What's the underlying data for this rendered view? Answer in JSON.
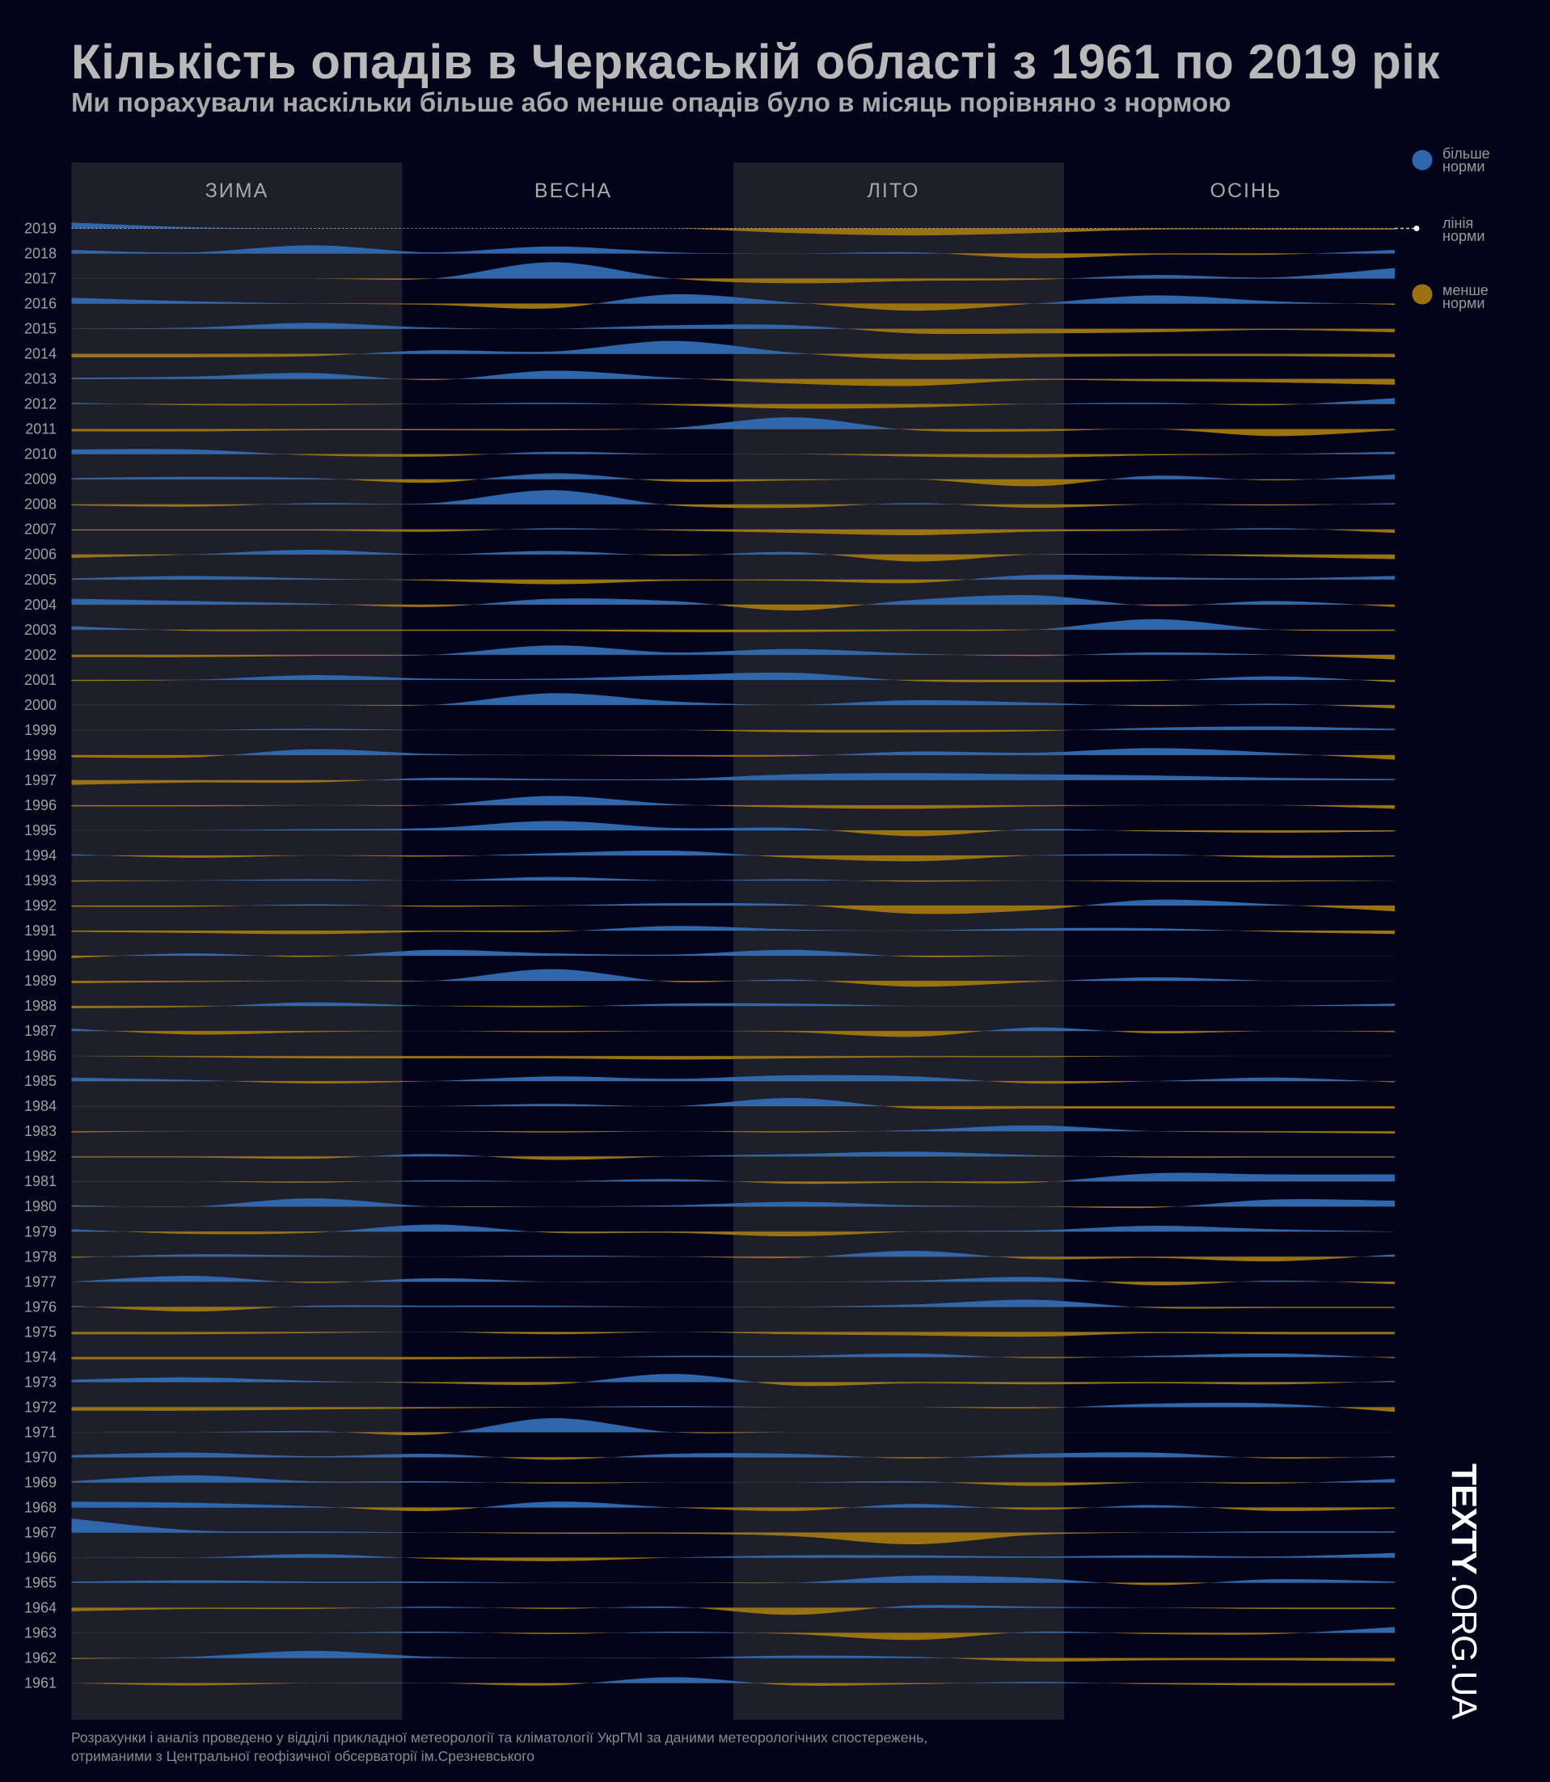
{
  "header": {
    "title": "Кількість опадів в Черкаській області з 1961 по 2019 рік",
    "subtitle": "Ми порахували наскільки більше або менше опадів було в місяць порівняно з нормою"
  },
  "legend": {
    "above": "більше норми",
    "above_l1": "більше",
    "above_l2": "норми",
    "line_l1": "лінія",
    "line_l2": "норми",
    "below_l1": "менше",
    "below_l2": "норми"
  },
  "footer": {
    "line1": "Розрахунки і аналіз проведено у відділі прикладної метеорології та кліматології УкрГМІ за даними метеорологічних спостережень,",
    "line2": "отриманими з Центральної геофізичної обсерваторії ім.Срезневського"
  },
  "logo": {
    "bold": "TEXTY",
    "thin": ".ORG.UA"
  },
  "colors": {
    "above": "#2f67ad",
    "below": "#9a720f",
    "background": "#03031a",
    "panel": "#1f1f2b"
  },
  "chart_data": {
    "type": "area",
    "subtype": "ridgeline",
    "title": "Кількість опадів в Черкаській області з 1961 по 2019 рік",
    "seasons": [
      "ЗИМА",
      "ВЕСНА",
      "ЛІТО",
      "ОСІНЬ"
    ],
    "points_per_row": 12,
    "value_meaning": "relative precipitation anomaly vs norm (positive = above norm, negative = below norm), approximate",
    "rows": [
      {
        "year": "2019",
        "values": [
          5,
          1,
          0,
          0,
          0,
          0,
          -4,
          -6,
          -4,
          -1,
          -1,
          -1
        ]
      },
      {
        "year": "2018",
        "values": [
          3,
          1,
          7,
          1,
          6,
          1,
          0,
          1,
          -4,
          -1,
          -1,
          3
        ]
      },
      {
        "year": "2017",
        "values": [
          0,
          0,
          0,
          0,
          14,
          0,
          -4,
          -2,
          -1,
          3,
          1,
          9
        ]
      },
      {
        "year": "2016",
        "values": [
          5,
          2,
          0,
          -1,
          -4,
          8,
          1,
          -6,
          0,
          7,
          2,
          -1
        ]
      },
      {
        "year": "2015",
        "values": [
          0,
          1,
          5,
          1,
          0,
          3,
          3,
          -4,
          -4,
          -3,
          -1,
          -3
        ]
      },
      {
        "year": "2014",
        "values": [
          -3,
          -3,
          -2,
          3,
          2,
          11,
          1,
          -5,
          -3,
          -2,
          -2,
          -3
        ]
      },
      {
        "year": "2013",
        "values": [
          1,
          2,
          5,
          -1,
          7,
          1,
          -4,
          -6,
          -1,
          -2,
          -3,
          -5
        ]
      },
      {
        "year": "2012",
        "values": [
          1,
          -1,
          -1,
          0,
          1,
          -1,
          -4,
          -3,
          0,
          1,
          -1,
          5
        ]
      },
      {
        "year": "2011",
        "values": [
          -2,
          -2,
          -1,
          -1,
          -1,
          1,
          10,
          -1,
          -2,
          0,
          -6,
          -1
        ]
      },
      {
        "year": "2010",
        "values": [
          4,
          4,
          -1,
          -2,
          2,
          0,
          0,
          -2,
          -3,
          -1,
          0,
          2
        ]
      },
      {
        "year": "2009",
        "values": [
          1,
          2,
          1,
          -3,
          5,
          -2,
          -1,
          0,
          -6,
          3,
          -1,
          4
        ]
      },
      {
        "year": "2008",
        "values": [
          -1,
          -2,
          1,
          1,
          12,
          -1,
          -3,
          1,
          -3,
          0,
          -1,
          1
        ]
      },
      {
        "year": "2007",
        "values": [
          -1,
          -1,
          -1,
          -2,
          1,
          -1,
          -3,
          -5,
          -2,
          -1,
          1,
          -3
        ]
      },
      {
        "year": "2006",
        "values": [
          -3,
          0,
          4,
          0,
          3,
          -1,
          2,
          -6,
          0,
          0,
          -2,
          -4
        ]
      },
      {
        "year": "2005",
        "values": [
          1,
          3,
          1,
          -1,
          -4,
          -1,
          -1,
          -3,
          4,
          2,
          1,
          3
        ]
      },
      {
        "year": "2004",
        "values": [
          5,
          3,
          1,
          -2,
          5,
          3,
          -5,
          4,
          8,
          -1,
          3,
          -2
        ]
      },
      {
        "year": "2003",
        "values": [
          3,
          -1,
          -1,
          -1,
          -1,
          -2,
          -2,
          -1,
          0,
          9,
          0,
          -1
        ]
      },
      {
        "year": "2002",
        "values": [
          -2,
          -2,
          -1,
          0,
          8,
          2,
          5,
          1,
          -1,
          2,
          0,
          -4
        ]
      },
      {
        "year": "2001",
        "values": [
          -1,
          0,
          4,
          1,
          1,
          4,
          6,
          -1,
          -2,
          -1,
          3,
          -2
        ]
      },
      {
        "year": "2000",
        "values": [
          0,
          0,
          0,
          0,
          10,
          3,
          0,
          4,
          2,
          -1,
          1,
          -3
        ]
      },
      {
        "year": "1999",
        "values": [
          0,
          0,
          1,
          0,
          0,
          0,
          -2,
          -2,
          -1,
          2,
          3,
          1
        ]
      },
      {
        "year": "1998",
        "values": [
          -2,
          -2,
          5,
          1,
          0,
          -1,
          -1,
          3,
          2,
          6,
          2,
          -4
        ]
      },
      {
        "year": "1997",
        "values": [
          -4,
          -2,
          -2,
          2,
          1,
          1,
          5,
          6,
          5,
          4,
          2,
          1
        ]
      },
      {
        "year": "1996",
        "values": [
          -1,
          -1,
          0,
          0,
          8,
          1,
          -2,
          -3,
          -1,
          0,
          0,
          -3
        ]
      },
      {
        "year": "1995",
        "values": [
          0,
          0,
          1,
          2,
          8,
          2,
          2,
          -5,
          1,
          -1,
          -2,
          -1
        ]
      },
      {
        "year": "1994",
        "values": [
          1,
          -2,
          0,
          -1,
          2,
          4,
          -2,
          -5,
          0,
          1,
          -2,
          -1
        ]
      },
      {
        "year": "1993",
        "values": [
          -1,
          0,
          1,
          0,
          3,
          0,
          1,
          -1,
          0,
          -1,
          -1,
          0
        ]
      },
      {
        "year": "1992",
        "values": [
          -1,
          -1,
          1,
          -1,
          0,
          2,
          1,
          -7,
          -4,
          5,
          1,
          -5
        ]
      },
      {
        "year": "1991",
        "values": [
          -1,
          -2,
          -3,
          -1,
          -1,
          4,
          1,
          0,
          2,
          2,
          -1,
          -3
        ]
      },
      {
        "year": "1990",
        "values": [
          -2,
          2,
          -1,
          5,
          2,
          1,
          5,
          -1,
          0,
          0,
          0,
          0
        ]
      },
      {
        "year": "1989",
        "values": [
          -2,
          -1,
          0,
          0,
          10,
          -1,
          1,
          -5,
          -1,
          3,
          0,
          0
        ]
      },
      {
        "year": "1988",
        "values": [
          -2,
          -1,
          3,
          0,
          -1,
          2,
          2,
          0,
          0,
          0,
          0,
          2
        ]
      },
      {
        "year": "1987",
        "values": [
          2,
          -3,
          -1,
          0,
          -1,
          0,
          -1,
          -5,
          3,
          -2,
          0,
          -1
        ]
      },
      {
        "year": "1986",
        "values": [
          0,
          -1,
          -2,
          -2,
          -2,
          -3,
          -2,
          -1,
          -1,
          0,
          0,
          0
        ]
      },
      {
        "year": "1985",
        "values": [
          3,
          1,
          -2,
          0,
          4,
          2,
          5,
          4,
          -2,
          0,
          3,
          -1
        ]
      },
      {
        "year": "1984",
        "values": [
          0,
          0,
          0,
          0,
          2,
          0,
          7,
          -2,
          -2,
          -2,
          -2,
          -2
        ]
      },
      {
        "year": "1983",
        "values": [
          -1,
          0,
          0,
          0,
          -1,
          0,
          -1,
          1,
          5,
          0,
          -1,
          -2
        ]
      },
      {
        "year": "1982",
        "values": [
          -1,
          -1,
          -2,
          2,
          -3,
          0,
          2,
          4,
          1,
          -1,
          -1,
          -1
        ]
      },
      {
        "year": "1981",
        "values": [
          0,
          0,
          -1,
          1,
          0,
          2,
          -2,
          -1,
          -1,
          7,
          6,
          6
        ]
      },
      {
        "year": "1980",
        "values": [
          1,
          0,
          7,
          0,
          0,
          1,
          4,
          1,
          0,
          -1,
          6,
          5
        ]
      },
      {
        "year": "1979",
        "values": [
          2,
          -2,
          -1,
          6,
          -1,
          -1,
          -4,
          0,
          1,
          5,
          2,
          0
        ]
      },
      {
        "year": "1978",
        "values": [
          -1,
          2,
          1,
          0,
          1,
          0,
          -1,
          5,
          -2,
          -1,
          -4,
          2
        ]
      },
      {
        "year": "1977",
        "values": [
          0,
          5,
          -1,
          3,
          0,
          0,
          0,
          1,
          4,
          -3,
          1,
          -2
        ]
      },
      {
        "year": "1976",
        "values": [
          1,
          -4,
          1,
          1,
          1,
          0,
          0,
          2,
          6,
          -1,
          -1,
          -1
        ]
      },
      {
        "year": "1975",
        "values": [
          -2,
          -2,
          -1,
          0,
          -2,
          0,
          -2,
          -3,
          -4,
          -1,
          -2,
          -2
        ]
      },
      {
        "year": "1974",
        "values": [
          -2,
          -2,
          -2,
          -2,
          -1,
          1,
          1,
          3,
          -1,
          1,
          3,
          -1
        ]
      },
      {
        "year": "1973",
        "values": [
          2,
          4,
          1,
          -1,
          -2,
          7,
          -3,
          -1,
          -2,
          -1,
          -2,
          1
        ]
      },
      {
        "year": "1972",
        "values": [
          -3,
          -3,
          -2,
          -1,
          0,
          1,
          0,
          0,
          -1,
          3,
          3,
          -4
        ]
      },
      {
        "year": "1971",
        "values": [
          0,
          0,
          1,
          -2,
          12,
          0,
          0,
          0,
          0,
          0,
          0,
          0
        ]
      },
      {
        "year": "1970",
        "values": [
          2,
          4,
          1,
          3,
          -2,
          3,
          3,
          -1,
          3,
          4,
          -1,
          1
        ]
      },
      {
        "year": "1969",
        "values": [
          1,
          6,
          1,
          1,
          -1,
          0,
          0,
          1,
          -3,
          0,
          -1,
          3
        ]
      },
      {
        "year": "1968",
        "values": [
          5,
          4,
          1,
          -3,
          5,
          0,
          -3,
          3,
          -2,
          2,
          -3,
          -1
        ]
      },
      {
        "year": "1967",
        "values": [
          12,
          2,
          1,
          0,
          -1,
          -1,
          -3,
          -10,
          -2,
          0,
          1,
          1
        ]
      },
      {
        "year": "1966",
        "values": [
          0,
          0,
          3,
          -1,
          -3,
          0,
          2,
          2,
          1,
          2,
          1,
          4
        ]
      },
      {
        "year": "1965",
        "values": [
          1,
          2,
          1,
          1,
          0,
          0,
          0,
          6,
          4,
          -2,
          3,
          1
        ]
      },
      {
        "year": "1964",
        "values": [
          -3,
          -1,
          -1,
          1,
          -1,
          1,
          -6,
          2,
          1,
          0,
          -1,
          -1
        ]
      },
      {
        "year": "1963",
        "values": [
          0,
          0,
          0,
          1,
          -1,
          1,
          -1,
          -6,
          1,
          -1,
          -1,
          5
        ]
      },
      {
        "year": "1962",
        "values": [
          -1,
          1,
          6,
          1,
          0,
          0,
          2,
          1,
          -3,
          -2,
          -2,
          -3
        ]
      },
      {
        "year": "1961",
        "values": [
          0,
          -2,
          0,
          0,
          -2,
          5,
          -2,
          -1,
          1,
          -1,
          -2,
          -2
        ]
      }
    ]
  }
}
